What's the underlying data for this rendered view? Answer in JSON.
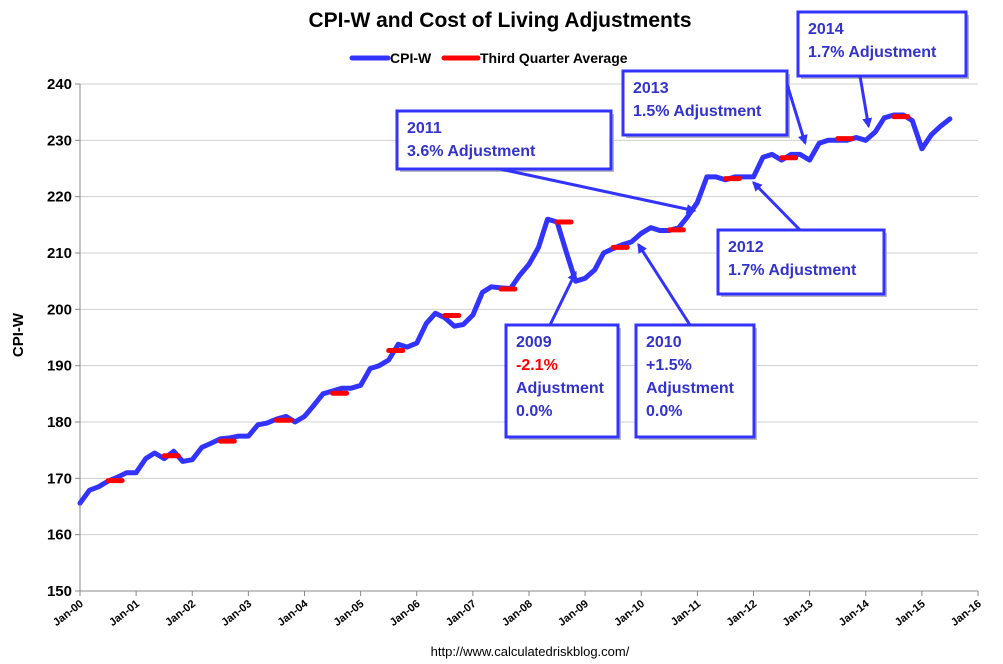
{
  "chart_data": {
    "type": "line",
    "title": "CPI-W and Cost of Living Adjustments",
    "xlabel": "",
    "ylabel": "CPI-W",
    "ylim": [
      150,
      240
    ],
    "yticks": [
      150,
      160,
      170,
      180,
      190,
      200,
      210,
      220,
      230,
      240
    ],
    "xlim": [
      2000,
      2016
    ],
    "xtick_labels": [
      "Jan-00",
      "Jan-01",
      "Jan-02",
      "Jan-03",
      "Jan-04",
      "Jan-05",
      "Jan-06",
      "Jan-07",
      "Jan-08",
      "Jan-09",
      "Jan-10",
      "Jan-11",
      "Jan-12",
      "Jan-13",
      "Jan-14",
      "Jan-15",
      "Jan-16"
    ],
    "legend": {
      "position": "top-center",
      "entries": [
        "CPI-W",
        "Third Quarter Average"
      ]
    },
    "grid": true,
    "series": [
      {
        "name": "CPI-W",
        "color": "#3333ff",
        "x": [
          2000.0,
          2000.17,
          2000.33,
          2000.5,
          2000.67,
          2000.83,
          2001.0,
          2001.17,
          2001.33,
          2001.5,
          2001.67,
          2001.83,
          2002.0,
          2002.17,
          2002.33,
          2002.5,
          2002.67,
          2002.83,
          2003.0,
          2003.17,
          2003.33,
          2003.5,
          2003.67,
          2003.83,
          2004.0,
          2004.17,
          2004.33,
          2004.5,
          2004.67,
          2004.83,
          2005.0,
          2005.17,
          2005.33,
          2005.5,
          2005.67,
          2005.83,
          2006.0,
          2006.17,
          2006.33,
          2006.5,
          2006.67,
          2006.83,
          2007.0,
          2007.17,
          2007.33,
          2007.5,
          2007.67,
          2007.83,
          2008.0,
          2008.17,
          2008.33,
          2008.5,
          2008.67,
          2008.83,
          2009.0,
          2009.17,
          2009.33,
          2009.5,
          2009.67,
          2009.83,
          2010.0,
          2010.17,
          2010.33,
          2010.5,
          2010.67,
          2010.83,
          2011.0,
          2011.17,
          2011.33,
          2011.5,
          2011.67,
          2011.83,
          2012.0,
          2012.17,
          2012.33,
          2012.5,
          2012.67,
          2012.83,
          2013.0,
          2013.17,
          2013.33,
          2013.5,
          2013.67,
          2013.83,
          2014.0,
          2014.17,
          2014.33,
          2014.5,
          2014.67,
          2014.83,
          2015.0,
          2015.17,
          2015.33,
          2015.5
        ],
        "values": [
          165.6,
          167.9,
          168.5,
          169.5,
          170.2,
          171.0,
          171.0,
          173.5,
          174.5,
          173.5,
          174.8,
          173.0,
          173.3,
          175.5,
          176.2,
          177.0,
          177.2,
          177.5,
          177.5,
          179.5,
          179.8,
          180.5,
          181.0,
          180.0,
          181.0,
          183.0,
          185.0,
          185.5,
          186.0,
          186.0,
          186.5,
          189.5,
          190.0,
          191.0,
          193.8,
          193.3,
          194.0,
          197.5,
          199.3,
          198.5,
          197.0,
          197.3,
          199.0,
          203.0,
          204.0,
          203.8,
          203.7,
          206.0,
          208.0,
          211.0,
          216.0,
          215.5,
          210.0,
          205.0,
          205.5,
          207.0,
          210.0,
          210.8,
          211.5,
          212.0,
          213.5,
          214.5,
          214.0,
          214.0,
          214.5,
          216.5,
          219.0,
          223.5,
          223.5,
          223.0,
          223.5,
          223.5,
          223.5,
          227.0,
          227.5,
          226.5,
          227.5,
          227.5,
          226.5,
          229.5,
          230.0,
          230.0,
          230.0,
          230.5,
          230.0,
          231.5,
          234.0,
          234.5,
          234.5,
          233.5,
          228.5,
          231.0,
          232.5,
          233.8
        ]
      },
      {
        "name": "Third Quarter Average",
        "color": "#ff0000",
        "segments": [
          {
            "year": 2000,
            "value": 169.6
          },
          {
            "year": 2001,
            "value": 174.0
          },
          {
            "year": 2002,
            "value": 176.6
          },
          {
            "year": 2003,
            "value": 180.3
          },
          {
            "year": 2004,
            "value": 185.1
          },
          {
            "year": 2005,
            "value": 192.7
          },
          {
            "year": 2006,
            "value": 198.9
          },
          {
            "year": 2007,
            "value": 203.6
          },
          {
            "year": 2008,
            "value": 215.5
          },
          {
            "year": 2009,
            "value": 211.0
          },
          {
            "year": 2010,
            "value": 214.1
          },
          {
            "year": 2011,
            "value": 223.2
          },
          {
            "year": 2012,
            "value": 226.9
          },
          {
            "year": 2013,
            "value": 230.3
          },
          {
            "year": 2014,
            "value": 234.2
          }
        ]
      }
    ],
    "annotations": [
      {
        "id": "2009",
        "lines": [
          {
            "text": "2009",
            "color": "#3333cc"
          },
          {
            "text": "-2.1%",
            "color": "#ff0000"
          },
          {
            "text": "Adjustment",
            "color": "#3333cc"
          },
          {
            "text": "0.0%",
            "color": "#3333cc"
          }
        ],
        "target_x": 2008.83,
        "target_y": 206.5
      },
      {
        "id": "2010",
        "lines": [
          {
            "text": "2010",
            "color": "#3333cc"
          },
          {
            "text": "+1.5%",
            "color": "#3333cc"
          },
          {
            "text": "Adjustment",
            "color": "#3333cc"
          },
          {
            "text": "0.0%",
            "color": "#3333cc"
          }
        ],
        "target_x": 2009.95,
        "target_y": 211.5
      },
      {
        "id": "2011",
        "lines": [
          {
            "text": "2011",
            "color": "#3333cc"
          },
          {
            "text": " 3.6% Adjustment",
            "color": "#3333cc"
          }
        ],
        "target_x": 2010.95,
        "target_y": 217.5
      },
      {
        "id": "2012",
        "lines": [
          {
            "text": "2012",
            "color": "#3333cc"
          },
          {
            "text": "1.7% Adjustment",
            "color": "#3333cc"
          }
        ],
        "target_x": 2012.0,
        "target_y": 222.5
      },
      {
        "id": "2013",
        "lines": [
          {
            "text": "2013",
            "color": "#3333cc"
          },
          {
            "text": "1.5% Adjustment",
            "color": "#3333cc"
          }
        ],
        "target_x": 2012.92,
        "target_y": 229.5
      },
      {
        "id": "2014",
        "lines": [
          {
            "text": "2014",
            "color": "#3333cc"
          },
          {
            "text": "1.7% Adjustment",
            "color": "#3333cc"
          }
        ],
        "target_x": 2014.05,
        "target_y": 232.5
      }
    ]
  },
  "footer": "http://www.calculatedriskblog.com/"
}
